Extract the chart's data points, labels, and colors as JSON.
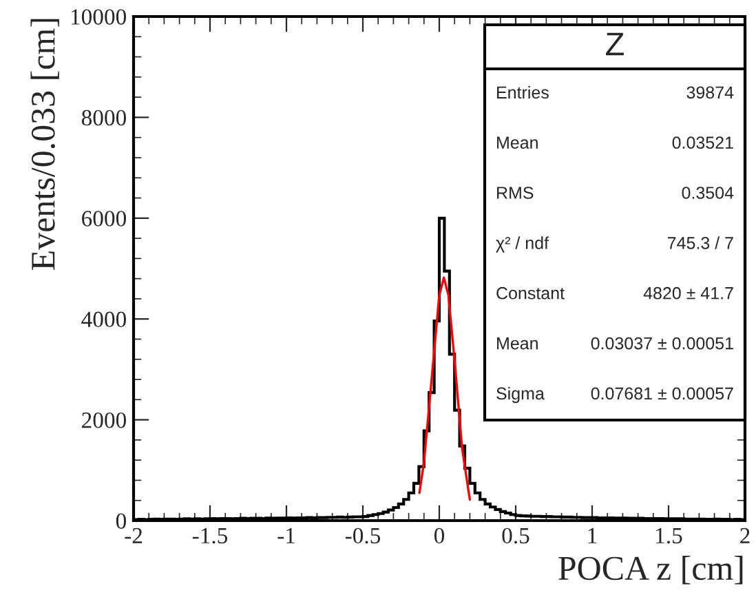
{
  "chart_data": {
    "type": "histogram",
    "xlabel": "POCA z [cm]",
    "ylabel": "Events/0.033 [cm]",
    "legend_title": "Z",
    "color": "#000000",
    "bins": [
      -2,
      -1.9667,
      -1.9333,
      -1.9,
      -1.8667,
      -1.8333,
      -1.8,
      -1.7667,
      -1.7333,
      -1.7,
      -1.6667,
      -1.6333,
      -1.6,
      -1.5667,
      -1.5333,
      -1.5,
      -1.4667,
      -1.4333,
      -1.4,
      -1.3667,
      -1.3333,
      -1.3,
      -1.2667,
      -1.2333,
      -1.2,
      -1.1667,
      -1.1333,
      -1.1,
      -1.0667,
      -1.0333,
      -1,
      -0.9667,
      -0.9333,
      -0.9,
      -0.8667,
      -0.8333,
      -0.8,
      -0.7667,
      -0.7333,
      -0.7,
      -0.6667,
      -0.6333,
      -0.6,
      -0.5667,
      -0.5333,
      -0.5,
      -0.4667,
      -0.4333,
      -0.4,
      -0.3667,
      -0.3333,
      -0.3,
      -0.2667,
      -0.2333,
      -0.2,
      -0.1667,
      -0.1333,
      -0.1,
      -0.0667,
      -0.0333,
      0,
      0.0333,
      0.0667,
      0.1,
      0.1333,
      0.1667,
      0.2,
      0.2333,
      0.2667,
      0.3,
      0.3333,
      0.3667,
      0.4,
      0.4333,
      0.4667,
      0.5,
      0.5333,
      0.5667,
      0.6,
      0.6333,
      0.6667,
      0.7,
      0.7333,
      0.7667,
      0.8,
      0.8333,
      0.8667,
      0.9,
      0.9333,
      0.9667,
      1,
      1.0333,
      1.0667,
      1.1,
      1.1333,
      1.1667,
      1.2,
      1.2333,
      1.2667,
      1.3,
      1.3333,
      1.3667,
      1.4,
      1.4333,
      1.4667,
      1.5,
      1.5333,
      1.5667,
      1.6,
      1.6333,
      1.6667,
      1.7,
      1.7333,
      1.7667,
      1.8,
      1.8333,
      1.8667,
      1.9,
      1.9333,
      1.9667,
      2
    ],
    "values": [
      20,
      25,
      20,
      25,
      30,
      25,
      30,
      30,
      25,
      30,
      35,
      30,
      35,
      30,
      35,
      40,
      35,
      40,
      40,
      35,
      40,
      45,
      40,
      45,
      45,
      40,
      50,
      45,
      50,
      50,
      55,
      50,
      55,
      55,
      60,
      55,
      60,
      60,
      65,
      65,
      70,
      65,
      70,
      75,
      75,
      80,
      100,
      120,
      140,
      170,
      210,
      260,
      330,
      420,
      550,
      740,
      1070,
      1780,
      2540,
      3960,
      6000,
      4950,
      3300,
      2190,
      1480,
      1040,
      740,
      550,
      420,
      330,
      270,
      220,
      180,
      150,
      120,
      100,
      95,
      90,
      85,
      85,
      80,
      80,
      75,
      75,
      70,
      70,
      65,
      65,
      60,
      60,
      60,
      55,
      55,
      55,
      50,
      50,
      50,
      45,
      45,
      45,
      40,
      40,
      40,
      40,
      35,
      35,
      35,
      35,
      30,
      30,
      30,
      30,
      25,
      25,
      30,
      25,
      25,
      20,
      25,
      20
    ],
    "series": [
      {
        "type": "line",
        "color": "#ff0000",
        "x": [
          -0.13,
          -0.1,
          -0.05,
          0,
          0.03,
          0.06,
          0.1,
          0.15,
          0.2
        ],
        "values": [
          550,
          1155,
          2810,
          4470,
          4820,
          4470,
          3180,
          1420,
          415
        ]
      }
    ],
    "xlim": [
      -2,
      2
    ],
    "xticks": [
      -2,
      -1.5,
      -1,
      -0.5,
      0,
      0.5,
      1,
      1.5,
      2
    ],
    "ylim": [
      0,
      10000
    ],
    "yticks": [
      0,
      2000,
      4000,
      6000,
      8000,
      10000
    ],
    "annotations": [
      "Entries",
      "39874",
      "Mean",
      "0.03521",
      "RMS",
      "0.3504",
      "χ² / ndf",
      "745.3 / 7",
      "Constant",
      "4820 ± 41.7",
      "Mean",
      "0.03037 ± 0.00051",
      "Sigma",
      "0.07681 ± 0.00057"
    ]
  }
}
